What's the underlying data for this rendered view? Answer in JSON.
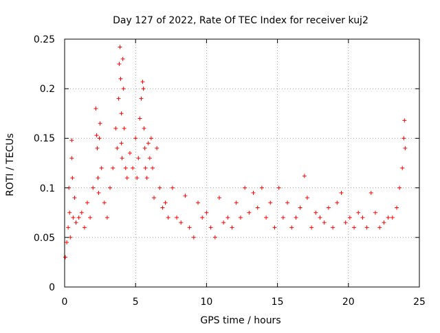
{
  "chart_data": {
    "type": "scatter",
    "title": "Day 127 of 2022, Rate Of TEC Index for receiver kuj2",
    "xlabel": "GPS time / hours",
    "ylabel": "ROTI / TECUs",
    "xlim": [
      0,
      25
    ],
    "ylim": [
      0,
      0.25
    ],
    "xticks": [
      0,
      5,
      10,
      15,
      20,
      25
    ],
    "yticks": [
      0,
      0.05,
      0.1,
      0.15,
      0.2,
      0.25
    ],
    "xtick_labels": [
      "0",
      "5",
      "10",
      "15",
      "20",
      "25"
    ],
    "ytick_labels": [
      "0",
      "0.05",
      "0.1",
      "0.15",
      "0.2",
      "0.25"
    ],
    "grid": true,
    "marker": "+",
    "series": [
      {
        "name": "ROTI",
        "color": "#ff0000",
        "x": [
          0.05,
          0.15,
          0.25,
          0.3,
          0.35,
          0.4,
          0.5,
          0.5,
          0.55,
          0.6,
          0.7,
          0.8,
          1.0,
          1.2,
          1.4,
          1.6,
          1.8,
          2.0,
          2.2,
          2.25,
          2.3,
          2.35,
          2.4,
          2.45,
          2.5,
          2.6,
          2.8,
          3.0,
          3.2,
          3.4,
          3.6,
          3.7,
          3.8,
          3.85,
          3.9,
          3.95,
          4.0,
          4.0,
          4.05,
          4.1,
          4.15,
          4.2,
          4.3,
          4.4,
          4.6,
          4.8,
          5.0,
          5.1,
          5.2,
          5.3,
          5.4,
          5.5,
          5.55,
          5.6,
          5.65,
          5.7,
          5.8,
          5.9,
          6.0,
          6.1,
          6.2,
          6.3,
          6.5,
          6.7,
          6.9,
          7.1,
          7.3,
          7.6,
          7.9,
          8.2,
          8.5,
          8.8,
          9.1,
          9.4,
          9.7,
          10.0,
          10.3,
          10.6,
          10.9,
          11.2,
          11.5,
          11.8,
          12.1,
          12.4,
          12.7,
          13.0,
          13.3,
          13.6,
          13.9,
          14.2,
          14.5,
          14.8,
          15.1,
          15.4,
          15.7,
          16.0,
          16.3,
          16.6,
          16.9,
          17.1,
          17.4,
          17.7,
          18.0,
          18.3,
          18.6,
          18.9,
          19.2,
          19.5,
          19.8,
          20.1,
          20.4,
          20.7,
          21.0,
          21.3,
          21.6,
          21.9,
          22.2,
          22.5,
          22.8,
          23.1,
          23.4,
          23.6,
          23.8,
          23.9,
          23.95,
          24.0
        ],
        "y": [
          0.03,
          0.045,
          0.06,
          0.1,
          0.075,
          0.05,
          0.13,
          0.148,
          0.11,
          0.07,
          0.09,
          0.065,
          0.07,
          0.075,
          0.06,
          0.085,
          0.07,
          0.1,
          0.18,
          0.153,
          0.14,
          0.11,
          0.095,
          0.15,
          0.165,
          0.12,
          0.085,
          0.07,
          0.1,
          0.12,
          0.16,
          0.14,
          0.19,
          0.225,
          0.242,
          0.21,
          0.175,
          0.145,
          0.13,
          0.23,
          0.2,
          0.16,
          0.12,
          0.11,
          0.135,
          0.12,
          0.15,
          0.11,
          0.13,
          0.17,
          0.19,
          0.207,
          0.2,
          0.16,
          0.14,
          0.12,
          0.11,
          0.145,
          0.13,
          0.15,
          0.12,
          0.09,
          0.14,
          0.1,
          0.08,
          0.085,
          0.07,
          0.1,
          0.07,
          0.065,
          0.092,
          0.06,
          0.05,
          0.085,
          0.07,
          0.075,
          0.06,
          0.05,
          0.09,
          0.065,
          0.07,
          0.06,
          0.085,
          0.07,
          0.1,
          0.075,
          0.095,
          0.08,
          0.1,
          0.07,
          0.085,
          0.06,
          0.1,
          0.07,
          0.085,
          0.06,
          0.07,
          0.08,
          0.112,
          0.09,
          0.06,
          0.075,
          0.07,
          0.065,
          0.08,
          0.06,
          0.085,
          0.095,
          0.065,
          0.07,
          0.06,
          0.075,
          0.07,
          0.06,
          0.095,
          0.075,
          0.06,
          0.065,
          0.07,
          0.07,
          0.08,
          0.1,
          0.12,
          0.15,
          0.168,
          0.14
        ]
      }
    ]
  }
}
